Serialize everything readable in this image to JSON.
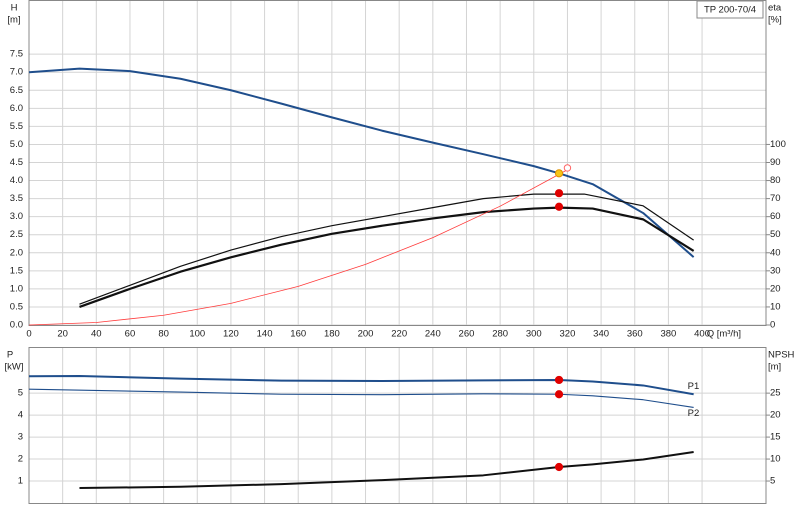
{
  "chart_data": [
    {
      "type": "line",
      "title": "TP 200-70/4",
      "x_label": "Q [m³/h]",
      "y_label": "H",
      "y_unit": "[m]",
      "y2_label": "eta",
      "y2_unit": "[%]",
      "xlim": [
        0,
        438
      ],
      "xticks": [
        0,
        20,
        40,
        60,
        80,
        100,
        120,
        140,
        160,
        180,
        200,
        220,
        240,
        260,
        280,
        300,
        320,
        340,
        360,
        380,
        400
      ],
      "ylim": [
        0,
        9
      ],
      "yticks": [
        {
          "value": 0,
          "label": "0.0"
        },
        {
          "value": 0.5,
          "label": "0.5"
        },
        {
          "value": 1,
          "label": "1.0"
        },
        {
          "value": 1.5,
          "label": "1.5"
        },
        {
          "value": 2,
          "label": "2.0"
        },
        {
          "value": 2.5,
          "label": "2.5"
        },
        {
          "value": 3,
          "label": "3.0"
        },
        {
          "value": 3.5,
          "label": "3.5"
        },
        {
          "value": 4,
          "label": "4.0"
        },
        {
          "value": 4.5,
          "label": "4.5"
        },
        {
          "value": 5,
          "label": "5.0"
        },
        {
          "value": 5.5,
          "label": "5.5"
        },
        {
          "value": 6,
          "label": "6.0"
        },
        {
          "value": 6.5,
          "label": "6.5"
        },
        {
          "value": 7,
          "label": "7.0"
        },
        {
          "value": 7.5,
          "label": "7.5"
        }
      ],
      "y2lim": [
        0,
        180
      ],
      "y2ticks": [
        0,
        10,
        20,
        30,
        40,
        50,
        60,
        70,
        80,
        90,
        100
      ],
      "grid": true,
      "series": [
        {
          "color": "#1f4e8c",
          "line_width": 2,
          "x": [
            0,
            30,
            60,
            90,
            120,
            150,
            180,
            210,
            240,
            270,
            300,
            315,
            335,
            365,
            395
          ],
          "values": [
            7.0,
            7.1,
            7.03,
            6.82,
            6.5,
            6.13,
            5.75,
            5.38,
            5.05,
            4.73,
            4.4,
            4.2,
            3.9,
            3.1,
            1.88
          ]
        },
        {
          "color": "#111111",
          "line_width": 1.2,
          "axis": "y2",
          "x": [
            30,
            60,
            90,
            120,
            150,
            180,
            210,
            240,
            270,
            300,
            330,
            365,
            395
          ],
          "values": [
            11.5,
            22,
            32.5,
            41.5,
            49,
            55,
            60,
            65,
            70,
            72.5,
            72.5,
            66,
            47
          ]
        },
        {
          "color": "#111111",
          "line_width": 2.2,
          "axis": "y2",
          "x": [
            30,
            60,
            90,
            120,
            150,
            180,
            210,
            240,
            270,
            300,
            315,
            335,
            365,
            395
          ],
          "values": [
            10,
            20,
            29.5,
            37.5,
            44.5,
            50.5,
            55,
            59,
            62.5,
            64.5,
            65,
            64.5,
            58.5,
            41
          ]
        },
        {
          "color": "#ff3b3b",
          "line_width": 0.8,
          "x": [
            0,
            40,
            80,
            120,
            160,
            200,
            240,
            280,
            320
          ],
          "values": [
            0,
            0.07,
            0.27,
            0.6,
            1.07,
            1.68,
            2.42,
            3.29,
            4.3
          ]
        },
        {
          "color": "#ff6666",
          "marker": "ring",
          "x": [
            320
          ],
          "values": [
            4.35
          ]
        },
        {
          "color": "#f5c518",
          "marker": "dot",
          "x": [
            315
          ],
          "values": [
            4.2
          ]
        },
        {
          "color": "#e00000",
          "marker": "dot",
          "axis": "y2",
          "x": [
            315,
            315
          ],
          "values": [
            73,
            65.5
          ]
        }
      ]
    },
    {
      "type": "line",
      "y_label": "P",
      "y_unit": "[kW]",
      "y2_label": "NPSH",
      "y2_unit": "[m]",
      "xlim": [
        0,
        438
      ],
      "ylim": [
        0,
        7.1
      ],
      "yticks": [
        1,
        2,
        3,
        4,
        5
      ],
      "y2lim": [
        0,
        35.5
      ],
      "y2ticks": [
        5,
        10,
        15,
        20,
        25
      ],
      "grid": true,
      "series": [
        {
          "name": "P1",
          "color": "#1f4e8c",
          "line_width": 2,
          "x": [
            0,
            30,
            90,
            150,
            210,
            270,
            315,
            335,
            365,
            395
          ],
          "values": [
            5.77,
            5.78,
            5.66,
            5.57,
            5.55,
            5.58,
            5.6,
            5.53,
            5.35,
            4.95
          ]
        },
        {
          "name": "P2",
          "color": "#1f4e8c",
          "line_width": 1.1,
          "x": [
            0,
            90,
            150,
            210,
            270,
            315,
            335,
            365,
            395
          ],
          "values": [
            5.18,
            5.05,
            4.95,
            4.93,
            4.97,
            4.95,
            4.88,
            4.7,
            4.35
          ]
        },
        {
          "color": "#111111",
          "line_width": 2,
          "axis": "y2",
          "x": [
            30,
            90,
            150,
            210,
            270,
            315,
            335,
            365,
            395
          ],
          "values": [
            3.4,
            3.7,
            4.3,
            5.2,
            6.3,
            8.2,
            8.8,
            9.9,
            11.6
          ]
        },
        {
          "color": "#e00000",
          "marker": "dot",
          "x": [
            315,
            315
          ],
          "values": [
            5.6,
            4.95
          ]
        },
        {
          "color": "#e00000",
          "marker": "dot",
          "axis": "y2",
          "x": [
            315
          ],
          "values": [
            8.2
          ]
        }
      ]
    }
  ]
}
